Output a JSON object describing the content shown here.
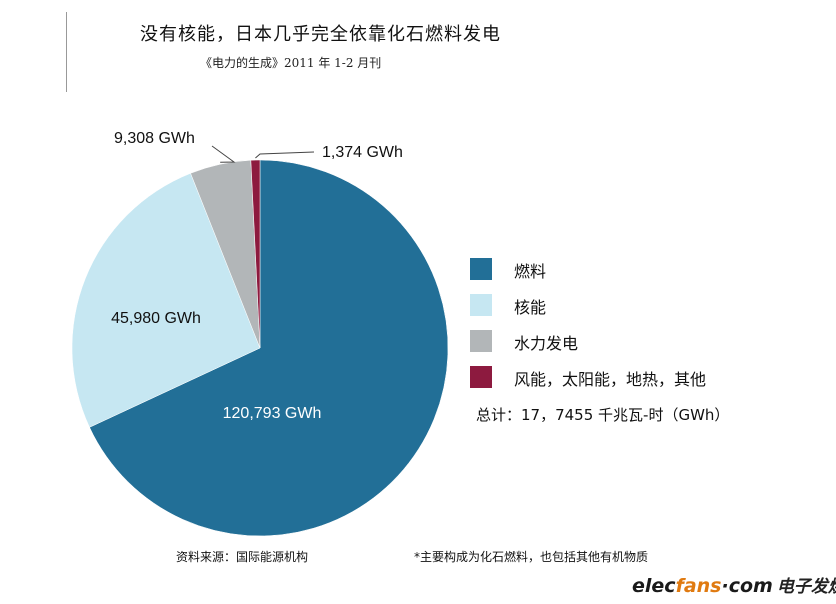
{
  "title": "没有核能，日本几乎完全依靠化石燃料发电",
  "subtitle": "《电力的生成》2011 年 1-2 月刊",
  "chart_data": {
    "type": "pie",
    "categories": [
      "燃料",
      "核能",
      "水力发电",
      "风能，太阳能，地热，其他"
    ],
    "values": [
      120793,
      45980,
      9308,
      1374
    ],
    "value_labels": [
      "120,793 GWh",
      "45,980 GWh",
      "9,308 GWh",
      "1,374 GWh"
    ],
    "colors": [
      "#226f97",
      "#c6e7f2",
      "#b2b6b8",
      "#8d1a3f"
    ],
    "legend_position": "right",
    "total_label": "总计：17，7455 千兆瓦-时（GWh）"
  },
  "source": "资料来源：国际能源机构",
  "footnote": "*主要构成为化石燃料，也包括其他有机物质",
  "brand": {
    "part1": "elec",
    "part2": "fans",
    "part3": "·com",
    "cn": "电子发烧友"
  }
}
